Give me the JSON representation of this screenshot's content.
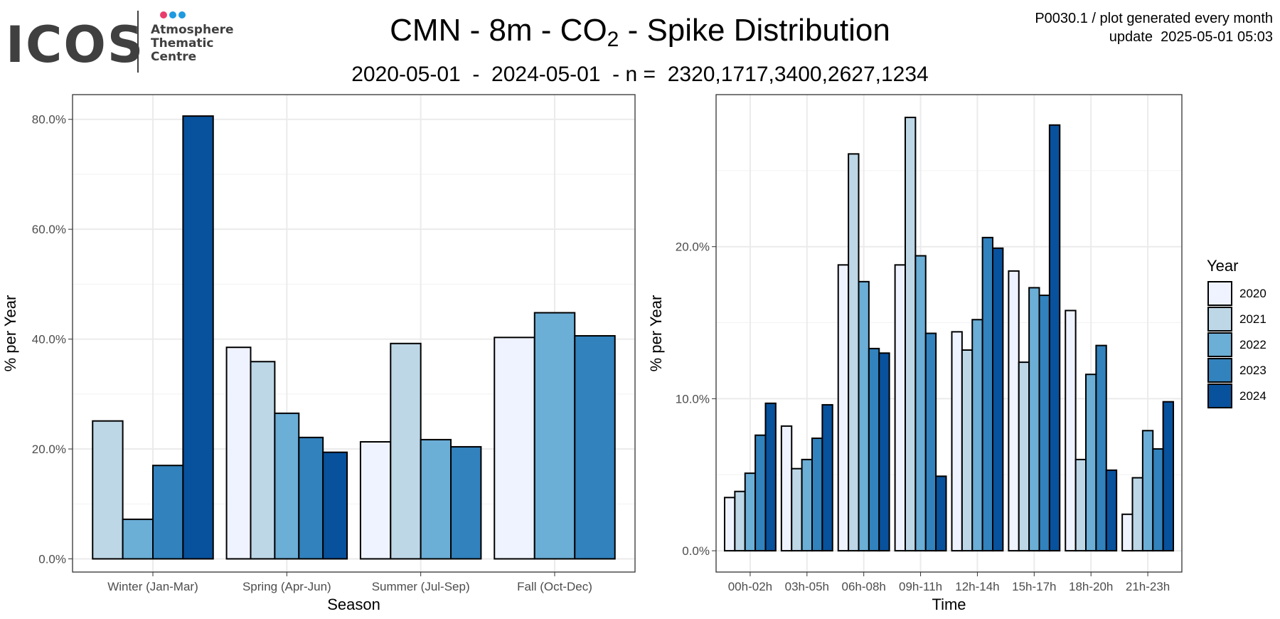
{
  "logo": {
    "word": "ICOS",
    "lines": [
      "Atmosphere",
      "Thematic",
      "Centre"
    ],
    "dot_colors": [
      "#e83e6c",
      "#1e9ae0",
      "#1e9ae0"
    ]
  },
  "title": {
    "prefix": "CMN - 8m - CO",
    "sub": "2",
    "suffix": " - Spike Distribution"
  },
  "subtitle": "2020-05-01  -  2024-05-01  - n =  2320,1717,3400,2627,1234",
  "meta": {
    "line1": "P0030.1 / plot generated every month",
    "line2": "update  2025-05-01 05:03"
  },
  "legend": {
    "title": "Year",
    "years": [
      "2020",
      "2021",
      "2022",
      "2023",
      "2024"
    ],
    "colors": [
      "#eff3ff",
      "#bdd7e7",
      "#6baed6",
      "#3182bd",
      "#08519c"
    ]
  },
  "chart_data": [
    {
      "type": "bar",
      "xlabel": "Season",
      "ylabel": "% per Year",
      "ylim": [
        -2.4,
        84.5
      ],
      "yticks": [
        0,
        20,
        40,
        60,
        80
      ],
      "ytick_labels": [
        "0.0%",
        "20.0%",
        "40.0%",
        "60.0%",
        "80.0%"
      ],
      "grid": true,
      "categories": [
        "Winter (Jan-Mar)",
        "Spring (Apr-Jun)",
        "Summer (Jul-Sep)",
        "Fall (Oct-Dec)"
      ],
      "series": [
        {
          "name": "2020",
          "values": [
            null,
            38.5,
            21.3,
            40.3
          ]
        },
        {
          "name": "2021",
          "values": [
            25.1,
            35.9,
            39.2,
            null
          ]
        },
        {
          "name": "2022",
          "values": [
            7.2,
            26.5,
            21.7,
            44.8
          ]
        },
        {
          "name": "2023",
          "values": [
            17.0,
            22.1,
            20.4,
            40.6
          ]
        },
        {
          "name": "2024",
          "values": [
            80.6,
            19.4,
            null,
            null
          ]
        }
      ]
    },
    {
      "type": "bar",
      "xlabel": "Time",
      "ylabel": "% per Year",
      "ylim": [
        -1.4,
        30.0
      ],
      "yticks": [
        0,
        10,
        20
      ],
      "ytick_labels": [
        "0.0%",
        "10.0%",
        "20.0%"
      ],
      "grid": true,
      "categories": [
        "00h-02h",
        "03h-05h",
        "06h-08h",
        "09h-11h",
        "12h-14h",
        "15h-17h",
        "18h-20h",
        "21h-23h"
      ],
      "series": [
        {
          "name": "2020",
          "values": [
            3.5,
            8.2,
            18.8,
            18.8,
            14.4,
            18.4,
            15.8,
            2.4
          ]
        },
        {
          "name": "2021",
          "values": [
            3.9,
            5.4,
            26.1,
            28.5,
            13.2,
            12.4,
            6.0,
            4.8
          ]
        },
        {
          "name": "2022",
          "values": [
            5.1,
            6.0,
            17.7,
            19.4,
            15.2,
            17.3,
            11.6,
            7.9
          ]
        },
        {
          "name": "2023",
          "values": [
            7.6,
            7.4,
            13.3,
            14.3,
            20.6,
            16.8,
            13.5,
            6.7
          ]
        },
        {
          "name": "2024",
          "values": [
            9.7,
            9.6,
            13.0,
            4.9,
            19.9,
            28.0,
            5.3,
            9.8
          ]
        }
      ]
    }
  ]
}
